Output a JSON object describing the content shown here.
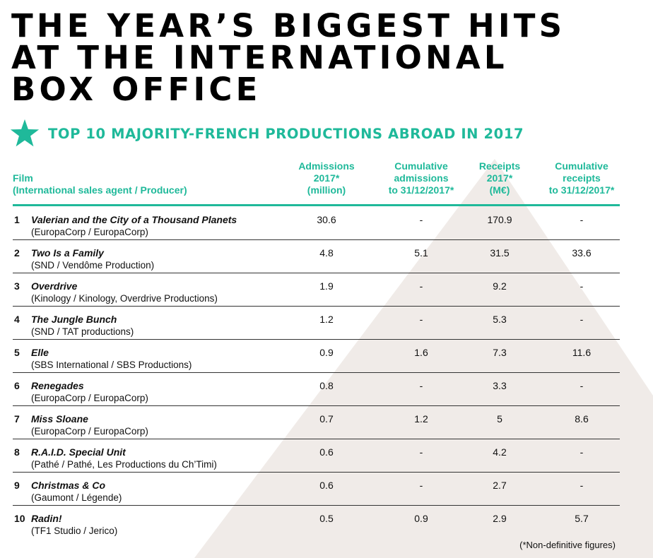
{
  "colors": {
    "accent": "#1fb99a",
    "background_shape": "#f0ebe8"
  },
  "title_lines": [
    "THE YEAR’S BIGGEST HITS",
    "AT THE INTERNATIONAL",
    "BOX OFFICE"
  ],
  "subtitle": {
    "icon": "star-icon",
    "text": "TOP 10 MAJORITY-FRENCH PRODUCTIONS ABROAD IN 2017"
  },
  "columns": {
    "film": [
      "Film",
      "(International sales agent / Producer)"
    ],
    "admissions": [
      "Admissions",
      "2017*",
      "(million)"
    ],
    "cum_admissions": [
      "Cumulative",
      "admissions",
      "to 31/12/2017*"
    ],
    "receipts": [
      "Receipts",
      "2017*",
      "(M€)"
    ],
    "cum_receipts": [
      "Cumulative",
      "receipts",
      "to 31/12/2017*"
    ]
  },
  "rows": [
    {
      "rank": "1",
      "title": "Valerian and the City of a Thousand Planets",
      "sub": "(EuropaCorp / EuropaCorp)",
      "adm": "30.6",
      "cadm": "-",
      "rec": "170.9",
      "crec": "-"
    },
    {
      "rank": "2",
      "title": "Two Is a Family",
      "sub": "(SND / Vendôme Production)",
      "adm": "4.8",
      "cadm": "5.1",
      "rec": "31.5",
      "crec": "33.6"
    },
    {
      "rank": "3",
      "title": "Overdrive",
      "sub": "(Kinology / Kinology, Overdrive Productions)",
      "adm": "1.9",
      "cadm": "-",
      "rec": "9.2",
      "crec": "-"
    },
    {
      "rank": "4",
      "title": "The Jungle Bunch",
      "sub": "(SND / TAT productions)",
      "adm": "1.2",
      "cadm": "-",
      "rec": "5.3",
      "crec": "-"
    },
    {
      "rank": "5",
      "title": "Elle",
      "sub": "(SBS International / SBS Productions)",
      "adm": "0.9",
      "cadm": "1.6",
      "rec": "7.3",
      "crec": "11.6"
    },
    {
      "rank": "6",
      "title": "Renegades",
      "sub": "(EuropaCorp / EuropaCorp)",
      "adm": "0.8",
      "cadm": "-",
      "rec": "3.3",
      "crec": "-"
    },
    {
      "rank": "7",
      "title": "Miss Sloane",
      "sub": "(EuropaCorp / EuropaCorp)",
      "adm": "0.7",
      "cadm": "1.2",
      "rec": "5",
      "crec": "8.6"
    },
    {
      "rank": "8",
      "title": "R.A.I.D. Special Unit",
      "sub": "(Pathé / Pathé, Les Productions du Ch’Timi)",
      "adm": "0.6",
      "cadm": "-",
      "rec": "4.2",
      "crec": "-"
    },
    {
      "rank": "9",
      "title": "Christmas & Co",
      "sub": "(Gaumont / Légende)",
      "adm": "0.6",
      "cadm": "-",
      "rec": "2.7",
      "crec": "-"
    },
    {
      "rank": "10",
      "title": "Radin!",
      "sub": "(TF1 Studio / Jerico)",
      "adm": "0.5",
      "cadm": "0.9",
      "rec": "2.9",
      "crec": "5.7"
    }
  ],
  "footnote": "(*Non-definitive figures)"
}
